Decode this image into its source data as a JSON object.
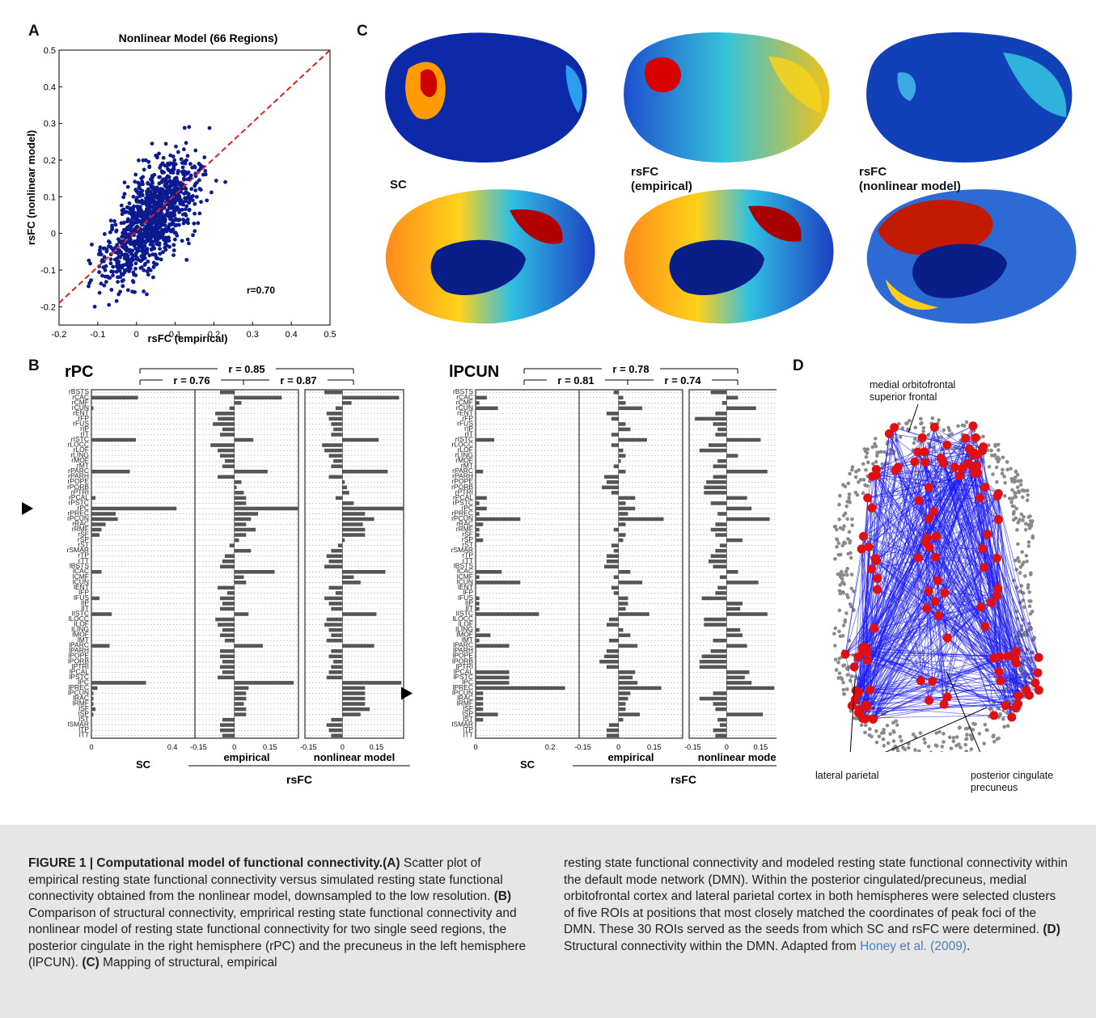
{
  "panels": {
    "A": "A",
    "B": "B",
    "C": "C",
    "D": "D"
  },
  "chart_data": [
    {
      "type": "scatter",
      "title": "Nonlinear Model (66 Regions)",
      "xlabel": "rsFC (empirical)",
      "ylabel": "rsFC (nonlinear model)",
      "xlim": [
        -0.2,
        0.5
      ],
      "ylim": [
        -0.25,
        0.5
      ],
      "xticks": [
        "-0.2",
        "-0.1",
        "0",
        "0.1",
        "0.2",
        "0.3",
        "0.4",
        "0.5"
      ],
      "yticks": [
        "-0.2",
        "-0.1",
        "0",
        "0.1",
        "0.2",
        "0.3",
        "0.4",
        "0.5"
      ],
      "annotation": "r=0.70",
      "fit_line": {
        "x": [
          -0.2,
          0.5
        ],
        "y": [
          -0.19,
          0.52
        ]
      }
    },
    {
      "type": "bar",
      "seed": "rPC",
      "panels": [
        "SC",
        "empirical",
        "nonlinear model"
      ],
      "group_label": "rsFC",
      "correlations": [
        "r = 0.85",
        "r = 0.76",
        "r = 0.87"
      ],
      "sc_ticks": [
        "0",
        "0.4"
      ],
      "rsfc_ticks": [
        "-0.15",
        "0",
        "0.15"
      ],
      "categories": [
        "rBSTS",
        "rCAC",
        "rCMF",
        "rCUN",
        "rENT",
        "rFP",
        "rFUS",
        "rIP",
        "rIT",
        "rISTC",
        "rLOCC",
        "rLOF",
        "rLING",
        "rMOF",
        "rMT",
        "rPARC",
        "rPARH",
        "rPOPE",
        "rPORB",
        "rPTRI",
        "rPCAL",
        "rPSTC",
        "rPC",
        "rPREC",
        "rPCUN",
        "rRAC",
        "rRMF",
        "rSF",
        "rSP",
        "rST",
        "rSMAR",
        "rTP",
        "rTT",
        "lBSTS",
        "lCAC",
        "lCMF",
        "lCUN",
        "lENT",
        "lFP",
        "lFUS",
        "lIP",
        "lIT",
        "lISTC",
        "lLOCC",
        "lLOF",
        "lLING",
        "lMOF",
        "lMT",
        "lPARC",
        "lPARH",
        "lPOPE",
        "lPORB",
        "lPTRI",
        "lPCAL",
        "lPSTC",
        "lPC",
        "lPREC",
        "lPCUN",
        "lRAC",
        "lRMF",
        "lSF",
        "lSP",
        "lST",
        "lSMAR",
        "lTP",
        "lTT"
      ],
      "series": [
        {
          "name": "SC",
          "values": [
            0,
            0.23,
            0,
            0.01,
            0,
            0,
            0,
            0,
            0,
            0.22,
            0,
            0,
            0,
            0,
            0,
            0.19,
            0,
            0,
            0,
            0,
            0.02,
            0,
            0.42,
            0.12,
            0.13,
            0.07,
            0.05,
            0.04,
            0,
            0,
            0,
            0,
            0,
            0,
            0.05,
            0,
            0,
            0,
            0,
            0.04,
            0,
            0,
            0.1,
            0,
            0,
            0,
            0,
            0,
            0.09,
            0,
            0,
            0,
            0,
            0,
            0,
            0.27,
            0.03,
            0.01,
            0.01,
            0.01,
            0.02,
            0.01,
            0,
            0,
            0,
            0
          ]
        },
        {
          "name": "empirical",
          "values": [
            -0.06,
            0.2,
            0.03,
            -0.02,
            -0.08,
            -0.07,
            -0.09,
            -0.05,
            -0.06,
            0.08,
            -0.1,
            -0.07,
            -0.06,
            -0.04,
            -0.05,
            0.14,
            -0.07,
            0.03,
            0.01,
            0.04,
            0.05,
            0.05,
            0.27,
            0.1,
            0.07,
            0.05,
            0.09,
            0.05,
            0.02,
            -0.02,
            0.07,
            -0.04,
            -0.05,
            -0.06,
            0.17,
            0.04,
            0.05,
            -0.07,
            -0.03,
            -0.06,
            -0.05,
            -0.06,
            0.06,
            -0.08,
            -0.07,
            -0.05,
            -0.06,
            -0.04,
            0.12,
            -0.06,
            -0.06,
            -0.05,
            -0.06,
            -0.05,
            -0.07,
            0.25,
            0.06,
            0.05,
            0.05,
            0.04,
            0.05,
            0.05,
            -0.05,
            -0.06,
            -0.06,
            -0.05
          ]
        },
        {
          "name": "nonlinear model",
          "values": [
            -0.08,
            0.25,
            0.04,
            -0.03,
            -0.07,
            -0.06,
            -0.05,
            -0.04,
            -0.05,
            0.16,
            -0.09,
            -0.08,
            -0.06,
            -0.04,
            -0.05,
            0.2,
            -0.06,
            0.01,
            0.02,
            0.03,
            -0.03,
            0.05,
            0.27,
            0.1,
            0.14,
            0.09,
            0.1,
            0.1,
            0.01,
            -0.02,
            -0.05,
            -0.07,
            -0.06,
            -0.08,
            0.19,
            0.05,
            0.08,
            -0.06,
            -0.03,
            -0.08,
            -0.06,
            -0.05,
            0.15,
            -0.07,
            -0.08,
            -0.06,
            -0.05,
            -0.07,
            0.14,
            -0.05,
            -0.06,
            -0.04,
            -0.05,
            -0.06,
            -0.07,
            0.26,
            0.1,
            0.1,
            0.1,
            0.1,
            0.12,
            0.08,
            -0.05,
            -0.07,
            -0.06,
            -0.05
          ]
        }
      ]
    },
    {
      "type": "bar",
      "seed": "lPCUN",
      "panels": [
        "SC",
        "empirical",
        "nonlinear model"
      ],
      "group_label": "rsFC",
      "correlations": [
        "r = 0.78",
        "r = 0.81",
        "r = 0.74"
      ],
      "sc_ticks": [
        "0",
        "0.2"
      ],
      "rsfc_ticks": [
        "-0.15",
        "0",
        "0.15"
      ],
      "series": [
        {
          "name": "SC",
          "values": [
            0,
            0.03,
            0.01,
            0.06,
            0,
            0,
            0,
            0,
            0,
            0.05,
            0,
            0,
            0,
            0,
            0,
            0.02,
            0,
            0,
            0,
            0,
            0.03,
            0.01,
            0.03,
            0.01,
            0.12,
            0.02,
            0.01,
            0.01,
            0.02,
            0,
            0,
            0,
            0,
            0,
            0.07,
            0.01,
            0.12,
            0,
            0,
            0.01,
            0.01,
            0.01,
            0.17,
            0,
            0,
            0.01,
            0.04,
            0.01,
            0.09,
            0,
            0,
            0,
            0,
            0.09,
            0.09,
            0.09,
            0.24,
            0.02,
            0.02,
            0.02,
            0.02,
            0.06,
            0.02,
            0,
            0,
            0
          ]
        },
        {
          "name": "empirical",
          "values": [
            -0.02,
            0.02,
            0.03,
            0.1,
            -0.05,
            -0.03,
            0.03,
            0.05,
            -0.03,
            0.12,
            -0.03,
            0.02,
            0.03,
            0.01,
            -0.02,
            0.03,
            -0.06,
            -0.05,
            -0.07,
            -0.03,
            0.07,
            0.03,
            0.07,
            0.04,
            0.19,
            0.03,
            -0.02,
            0.03,
            0.02,
            -0.03,
            -0.02,
            -0.05,
            -0.05,
            -0.06,
            0.05,
            -0.02,
            0.1,
            -0.03,
            -0.02,
            0.04,
            0.04,
            0.03,
            0.13,
            -0.04,
            -0.05,
            0.02,
            0.05,
            -0.04,
            0.08,
            -0.05,
            -0.06,
            -0.08,
            -0.05,
            0.07,
            0.06,
            0.08,
            0.18,
            0.05,
            0.04,
            0.03,
            0.03,
            0.09,
            0.02,
            -0.04,
            -0.05,
            -0.05
          ]
        },
        {
          "name": "nonlinear model",
          "values": [
            -0.07,
            0.05,
            -0.02,
            0.13,
            -0.05,
            -0.14,
            -0.06,
            -0.04,
            -0.05,
            0.15,
            -0.08,
            -0.12,
            0.05,
            -0.04,
            -0.06,
            0.18,
            -0.06,
            -0.09,
            -0.1,
            -0.1,
            0.09,
            -0.07,
            0.11,
            -0.04,
            0.19,
            -0.05,
            -0.07,
            -0.05,
            0.07,
            -0.03,
            -0.05,
            -0.07,
            -0.08,
            -0.06,
            0.05,
            -0.03,
            0.14,
            -0.04,
            -0.05,
            -0.11,
            0.07,
            0.06,
            0.18,
            -0.1,
            -0.1,
            0.06,
            0.07,
            -0.06,
            0.09,
            -0.07,
            -0.11,
            -0.12,
            -0.12,
            0.1,
            0.08,
            0.11,
            0.21,
            -0.06,
            -0.12,
            -0.06,
            -0.05,
            0.16,
            -0.04,
            -0.03,
            -0.06,
            -0.05
          ]
        }
      ]
    }
  ],
  "panelC": {
    "labels": {
      "sc": "SC",
      "emp": "rsFC\n(empirical)",
      "nl": "rsFC\n(nonlinear model)"
    }
  },
  "panelD": {
    "ann_top": "medial orbitofrontal\nsuperior frontal",
    "ann_left": "lateral parietal",
    "ann_right": "posterior cingulate\nprecuneus",
    "colors": {
      "edge": "#1a1aff",
      "roi": "#e01010",
      "node": "#8a8a8a"
    }
  },
  "caption": {
    "title": "FIGURE 1 | Computational model of functional connectivity.",
    "a_ref": "(A)",
    "a_text": " Scatter plot of empirical resting state functional connectivity versus simulated resting state functional connectivity obtained from the nonlinear model, downsampled to the low resolution. ",
    "b_ref": "(B)",
    "b_text": " Comparison of structural connectivity, emprirical resting state functional connectivity and nonlinear model of resting state functional connectivity for two single seed regions, the posterior cingulate in the right hemisphere (rPC) and the precuneus in the left hemisphere (lPCUN). ",
    "c_ref": "(C)",
    "c_text": " Mapping of structural, empirical resting state functional connectivity and modeled resting state functional connectivity within the default mode network (DMN). Within the posterior cingulated/precuneus, medial orbitofrontal cortex and lateral parietal cortex in both hemispheres were selected clusters of five ROIs at positions that most closely matched the coordinates of peak foci of the DMN. These 30 ROIs served as the seeds from which SC and rsFC were determined. ",
    "d_ref": "(D)",
    "d_text": " Structural connectivity within the DMN. Adapted from ",
    "cite": "Honey et al.",
    "cite_year": "(2009)",
    "end": "."
  }
}
